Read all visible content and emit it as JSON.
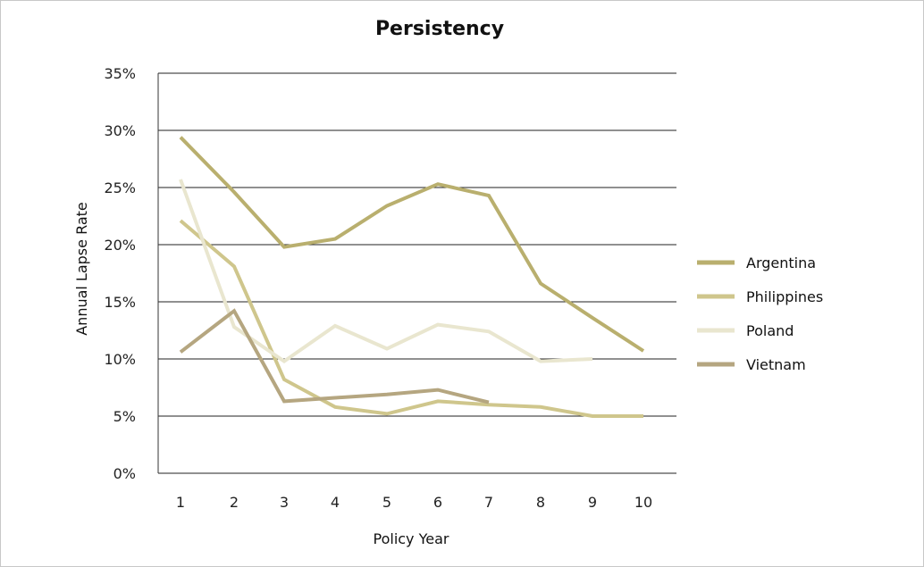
{
  "chart_data": {
    "type": "line",
    "title": "Persistency",
    "xlabel": "Policy Year",
    "ylabel": "Annual Lapse Rate",
    "x": [
      1,
      2,
      3,
      4,
      5,
      6,
      7,
      8,
      9,
      10
    ],
    "x_tick_labels": [
      "1",
      "2",
      "3",
      "4",
      "5",
      "6",
      "7",
      "8",
      "9",
      "10"
    ],
    "y_tick_labels": [
      "0%",
      "5%",
      "10%",
      "15%",
      "20%",
      "25%",
      "30%",
      "35%"
    ],
    "y_ticks": [
      0,
      5,
      10,
      15,
      20,
      25,
      30,
      35
    ],
    "ylim": [
      0,
      35
    ],
    "grid": "horizontal",
    "legend_position": "right",
    "series": [
      {
        "name": "Argentina",
        "color": "#b9af6e",
        "values": [
          29.4,
          24.6,
          19.8,
          20.5,
          23.4,
          25.3,
          24.3,
          16.6,
          13.6,
          10.7
        ]
      },
      {
        "name": "Philippines",
        "color": "#cfc68c",
        "values": [
          22.1,
          18.1,
          8.2,
          5.8,
          5.2,
          6.3,
          6.0,
          5.8,
          5.0,
          5.0
        ]
      },
      {
        "name": "Poland",
        "color": "#e9e6cf",
        "values": [
          25.7,
          12.8,
          9.8,
          12.9,
          10.9,
          13.0,
          12.4,
          9.8,
          10.0,
          null
        ]
      },
      {
        "name": "Vietnam",
        "color": "#b5a680",
        "values": [
          10.6,
          14.2,
          6.3,
          6.6,
          6.9,
          7.3,
          6.2,
          null,
          null,
          null
        ]
      }
    ]
  }
}
